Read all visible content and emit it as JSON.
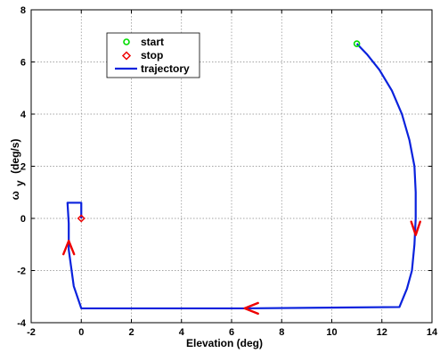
{
  "chart_data": {
    "type": "line",
    "xlabel": "Elevation (deg)",
    "ylabel": "ω y (deg/s)",
    "ylabel_parts": {
      "symbol": "ω",
      "sub": "y",
      "rest": "(deg/s)"
    },
    "xlim": [
      -2,
      14
    ],
    "ylim": [
      -4,
      8
    ],
    "xticks": [
      -2,
      0,
      2,
      4,
      6,
      8,
      10,
      12,
      14
    ],
    "yticks": [
      -4,
      -2,
      0,
      2,
      4,
      6,
      8
    ],
    "grid": true,
    "legend_position": "top-left",
    "legend": [
      {
        "label": "start",
        "marker": "circle",
        "color": "#00dd00"
      },
      {
        "label": "stop",
        "marker": "diamond",
        "color": "#ee0000"
      },
      {
        "label": "trajectory",
        "marker": "line",
        "color": "#0a22dd"
      }
    ],
    "series": [
      {
        "name": "trajectory",
        "color": "#0a22dd",
        "points": [
          [
            11.0,
            6.7
          ],
          [
            11.4,
            6.3
          ],
          [
            11.9,
            5.7
          ],
          [
            12.4,
            4.9
          ],
          [
            12.8,
            4.0
          ],
          [
            13.1,
            3.0
          ],
          [
            13.3,
            2.0
          ],
          [
            13.35,
            1.0
          ],
          [
            13.35,
            0.0
          ],
          [
            13.3,
            -1.0
          ],
          [
            13.2,
            -2.0
          ],
          [
            13.0,
            -2.7
          ],
          [
            12.7,
            -3.4
          ],
          [
            6.5,
            -3.45
          ],
          [
            0.0,
            -3.45
          ],
          [
            -0.3,
            -2.6
          ],
          [
            -0.5,
            -1.2
          ],
          [
            -0.5,
            -0.2
          ],
          [
            -0.55,
            0.6
          ],
          [
            0.0,
            0.6
          ],
          [
            0.0,
            0.0
          ]
        ]
      }
    ],
    "start": {
      "x": 11.0,
      "y": 6.7
    },
    "stop": {
      "x": 0.0,
      "y": 0.0
    },
    "direction_arrows": [
      {
        "x": 13.35,
        "y": -0.4,
        "direction": "down",
        "color": "#ee0000"
      },
      {
        "x": 6.7,
        "y": -3.45,
        "direction": "left",
        "color": "#ee0000"
      },
      {
        "x": -0.5,
        "y": -1.1,
        "direction": "up",
        "color": "#ee0000"
      }
    ]
  }
}
